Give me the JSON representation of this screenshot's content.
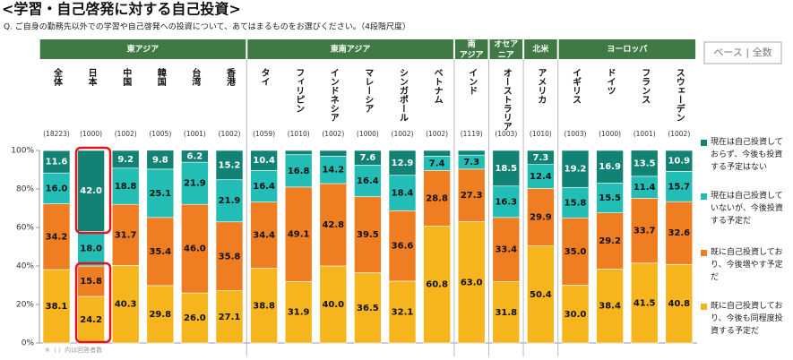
{
  "title": "<学習・自己啓発に対する自己投資>",
  "question": "Q. ご自身の勤務先以外での学習や自己啓発への投資について、あてはまるものをお選びください。（4段階尺度）",
  "base_label": "ベース | 全数",
  "footnote": "※（ ）内は回答者数",
  "chart_data": {
    "type": "stacked_bar",
    "categories": [
      "全体",
      "日本",
      "中国",
      "韓国",
      "台湾",
      "香港",
      "タイ",
      "フィリピン",
      "インドネシア",
      "マレーシア",
      "シンガポール",
      "ベトナム",
      "インド",
      "オーストラリア",
      "アメリカ",
      "イギリス",
      "ドイツ",
      "フランス",
      "スウェーデン"
    ],
    "respondents": [
      "(18223)",
      "(1000)",
      "(1002)",
      "(1005)",
      "(1001)",
      "(1002)",
      "(1059)",
      "(1010)",
      "(1002)",
      "(1000)",
      "(1002)",
      "(1002)",
      "(1119)",
      "(1003)",
      "(1010)",
      "(1003)",
      "(1000)",
      "(1001)",
      "(1002)"
    ],
    "groups": [
      {
        "name": "東アジア",
        "span": 6
      },
      {
        "name": "東南アジア",
        "span": 6
      },
      {
        "name": "南\nアジア",
        "span": 1
      },
      {
        "name": "オセア\nニア",
        "span": 1
      },
      {
        "name": "北米",
        "span": 1
      },
      {
        "name": "ヨーロッパ",
        "span": 4
      }
    ],
    "series": [
      {
        "name": "既に自己投資しており、今後も同程度投資する予定だ",
        "color": "#f6b51c",
        "values": [
          38.1,
          24.2,
          40.3,
          29.8,
          26.0,
          27.1,
          38.8,
          31.9,
          40.0,
          36.5,
          32.1,
          60.8,
          63.0,
          31.8,
          50.4,
          30.0,
          38.4,
          41.5,
          40.8
        ],
        "value_labels": [
          "38.1",
          "24.2",
          "40.3",
          "29.8",
          "26.0",
          "27.1",
          "38.8",
          "31.9",
          "40.0",
          "36.5",
          "32.1",
          "60.8",
          "63.0",
          "31.8",
          "50.4",
          "30.0",
          "38.4",
          "41.5",
          "40.8"
        ]
      },
      {
        "name": "既に自己投資しており、今後増やす予定だ",
        "color": "#ef7d22",
        "values": [
          34.2,
          15.8,
          31.7,
          35.4,
          46.0,
          35.8,
          34.4,
          49.1,
          42.8,
          39.5,
          36.6,
          28.8,
          27.3,
          33.4,
          29.9,
          35.0,
          29.2,
          33.7,
          32.6
        ],
        "value_labels": [
          "34.2",
          "15.8",
          "31.7",
          "35.4",
          "46.0",
          "35.8",
          "34.4",
          "49.1",
          "42.8",
          "39.5",
          "36.6",
          "28.8",
          "27.3",
          "33.4",
          "29.9",
          "35.0",
          "29.2",
          "33.7",
          "32.6"
        ]
      },
      {
        "name": "現在は自己投資していないが、今後投資する予定だ",
        "color": "#22bdb5",
        "values": [
          16.0,
          18.0,
          18.8,
          25.1,
          21.9,
          21.9,
          16.4,
          16.8,
          14.2,
          16.4,
          18.4,
          7.4,
          7.3,
          16.3,
          12.4,
          15.8,
          15.5,
          11.4,
          15.7
        ],
        "value_labels": [
          "16.0",
          "18.0",
          "18.8",
          "25.1",
          "21.9",
          "21.9",
          "16.4",
          "16.8",
          "14.2",
          "16.4",
          "18.4",
          "7.4",
          "7.3",
          "16.3",
          "12.4",
          "15.8",
          "15.5",
          "11.4",
          "15.7"
        ]
      },
      {
        "name": "現在は自己投資しておらず、今後も投資する予定はない",
        "color": "#128274",
        "values": [
          11.6,
          42.0,
          9.2,
          9.8,
          6.2,
          15.2,
          10.4,
          2.2,
          3.0,
          7.6,
          12.9,
          3.0,
          2.4,
          18.5,
          7.3,
          19.2,
          16.9,
          13.5,
          10.9
        ],
        "value_labels": [
          "11.6",
          "42.0",
          "9.2",
          "9.8",
          "6.2",
          "15.2",
          "10.4",
          null,
          null,
          "7.6",
          "12.9",
          null,
          null,
          "18.5",
          "7.3",
          "19.2",
          "16.9",
          "13.5",
          "10.9"
        ]
      }
    ],
    "ylim": [
      0,
      100
    ],
    "yticks": [
      {
        "value": 0,
        "label": "0%"
      },
      {
        "value": 20,
        "label": "20%"
      },
      {
        "value": 40,
        "label": "40%"
      },
      {
        "value": 60,
        "label": "60%"
      },
      {
        "value": 80,
        "label": "80%"
      },
      {
        "value": 100,
        "label": "100%"
      }
    ]
  }
}
